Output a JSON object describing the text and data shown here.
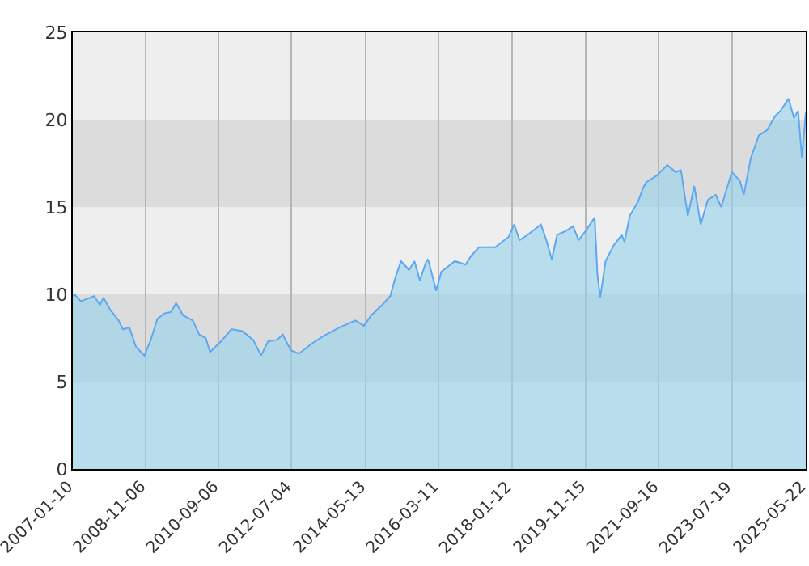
{
  "chart_data": {
    "type": "area",
    "x": [
      "2007-01-10",
      "2007-01-25",
      "2007-03-25",
      "2007-07-25",
      "2007-09-14",
      "2007-10-18",
      "2007-12-20",
      "2008-03-04",
      "2008-04-13",
      "2008-06-11",
      "2008-08-09",
      "2008-10-26",
      "2008-12-24",
      "2009-02-22",
      "2009-04-27",
      "2009-06-29",
      "2009-08-12",
      "2009-10-15",
      "2010-01-12",
      "2010-03-12",
      "2010-05-10",
      "2010-06-19",
      "2010-09-26",
      "2011-01-01",
      "2011-04-10",
      "2011-07-17",
      "2011-09-29",
      "2011-12-01",
      "2012-02-24",
      "2012-04-14",
      "2012-06-27",
      "2012-09-09",
      "2013-01-09",
      "2013-04-18",
      "2013-09-13",
      "2014-02-08",
      "2014-04-27",
      "2014-07-04",
      "2014-10-12",
      "2014-12-24",
      "2015-02-11",
      "2015-04-01",
      "2015-06-14",
      "2015-08-03",
      "2015-09-21",
      "2015-11-19",
      "2015-12-04",
      "2016-02-06",
      "2016-02-16",
      "2016-04-05",
      "2016-08-07",
      "2016-11-12",
      "2017-01-02",
      "2017-03-16",
      "2017-08-11",
      "2017-12-12",
      "2018-01-30",
      "2018-03-21",
      "2018-06-03",
      "2018-10-03",
      "2018-11-21",
      "2019-01-10",
      "2019-02-28",
      "2019-05-12",
      "2019-07-24",
      "2019-09-12",
      "2019-11-24",
      "2020-02-06",
      "2020-03-03",
      "2020-03-28",
      "2020-05-16",
      "2020-07-29",
      "2020-10-11",
      "2020-11-05",
      "2020-12-24",
      "2021-03-08",
      "2021-04-26",
      "2021-05-21",
      "2021-08-27",
      "2021-12-03",
      "2022-02-15",
      "2022-04-06",
      "2022-06-08",
      "2022-08-06",
      "2022-10-04",
      "2022-12-07",
      "2023-02-18",
      "2023-04-09",
      "2023-07-16",
      "2023-09-27",
      "2023-11-02",
      "2024-01-05",
      "2024-03-19",
      "2024-06-01",
      "2024-08-14",
      "2024-10-02",
      "2024-12-15",
      "2025-02-03",
      "2025-03-13",
      "2025-04-17",
      "2025-05-22"
    ],
    "series": [
      {
        "color": "#5ea8f2",
        "values": [
          9.9,
          10.0,
          9.6,
          9.9,
          9.4,
          9.8,
          9.1,
          8.5,
          8.0,
          8.1,
          7.0,
          6.5,
          7.4,
          8.6,
          8.9,
          9.0,
          9.5,
          8.8,
          8.5,
          7.7,
          7.5,
          6.7,
          7.3,
          8.0,
          7.9,
          7.4,
          6.5,
          7.3,
          7.4,
          7.7,
          6.8,
          6.6,
          7.2,
          7.6,
          8.1,
          8.5,
          8.2,
          8.8,
          9.4,
          9.9,
          11.0,
          11.9,
          11.4,
          11.9,
          10.8,
          11.9,
          12.0,
          10.5,
          10.2,
          11.3,
          11.9,
          11.7,
          12.2,
          12.7,
          12.7,
          13.3,
          14.0,
          13.1,
          13.4,
          14.0,
          13.1,
          12.0,
          13.4,
          13.6,
          13.9,
          13.1,
          13.7,
          14.4,
          11.1,
          9.8,
          11.9,
          12.8,
          13.4,
          13.0,
          14.5,
          15.3,
          16.1,
          16.4,
          16.8,
          17.4,
          17.0,
          17.1,
          14.5,
          16.2,
          14.0,
          15.4,
          15.7,
          15.0,
          17.0,
          16.5,
          15.7,
          17.8,
          19.1,
          19.4,
          20.2,
          20.5,
          21.2,
          20.1,
          20.5,
          17.8,
          20.4
        ]
      }
    ],
    "xlim": [
      "2007-01-10",
      "2025-05-22"
    ],
    "xticks": [
      "2007-01-10",
      "2008-11-06",
      "2010-09-06",
      "2012-07-04",
      "2014-05-13",
      "2016-03-11",
      "2018-01-12",
      "2019-11-15",
      "2021-09-16",
      "2023-07-19",
      "2025-05-22"
    ],
    "ylim": [
      0,
      25
    ],
    "yticks": [
      0,
      5,
      10,
      15,
      20,
      25
    ],
    "grid": true
  }
}
